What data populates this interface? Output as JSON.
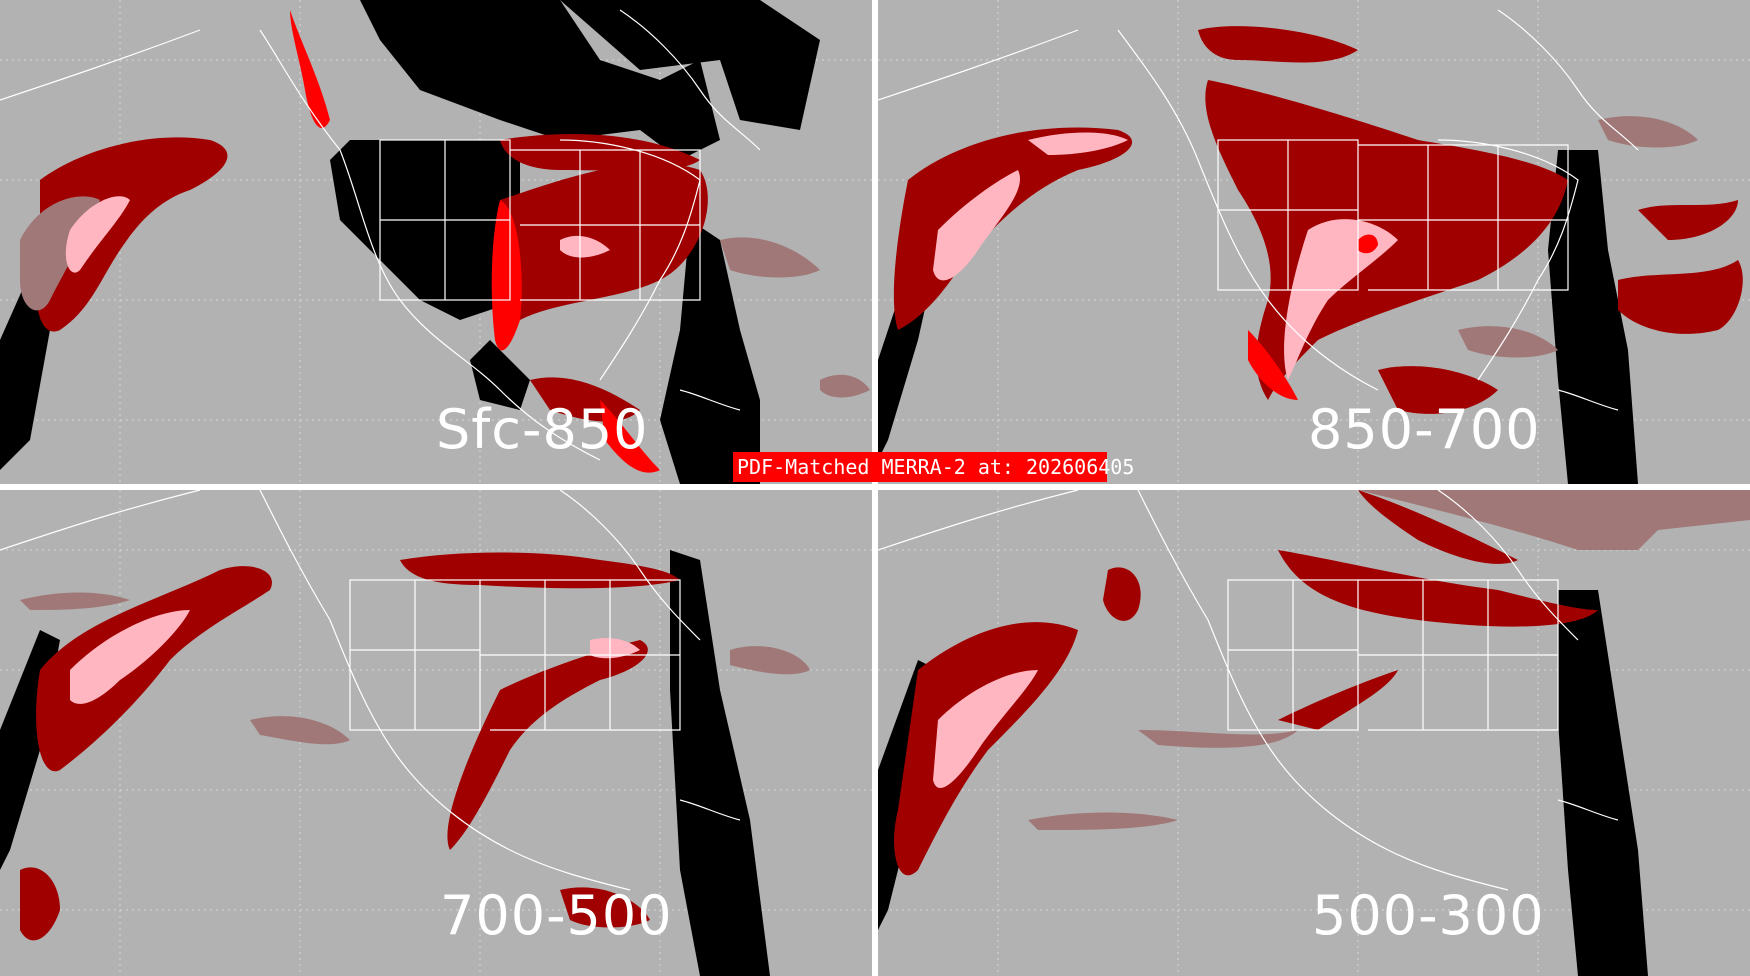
{
  "title": "PDF-Matched MERRA-2 at: 202606405",
  "panels": [
    {
      "id": "tl",
      "layer_label": "Sfc-850"
    },
    {
      "id": "tr",
      "layer_label": "850-700"
    },
    {
      "id": "bl",
      "layer_label": "700-500"
    },
    {
      "id": "br",
      "layer_label": "500-300"
    }
  ],
  "colors": {
    "background": "#b2b2b2",
    "divider": "#ffffff",
    "no_data": "#000000",
    "category_low": "#a07878",
    "category_mid": "#a00000",
    "category_high": "#ffb6c1",
    "category_max": "#ff0000",
    "coastline": "#ffffff",
    "gridline": "#d8d8d8"
  }
}
